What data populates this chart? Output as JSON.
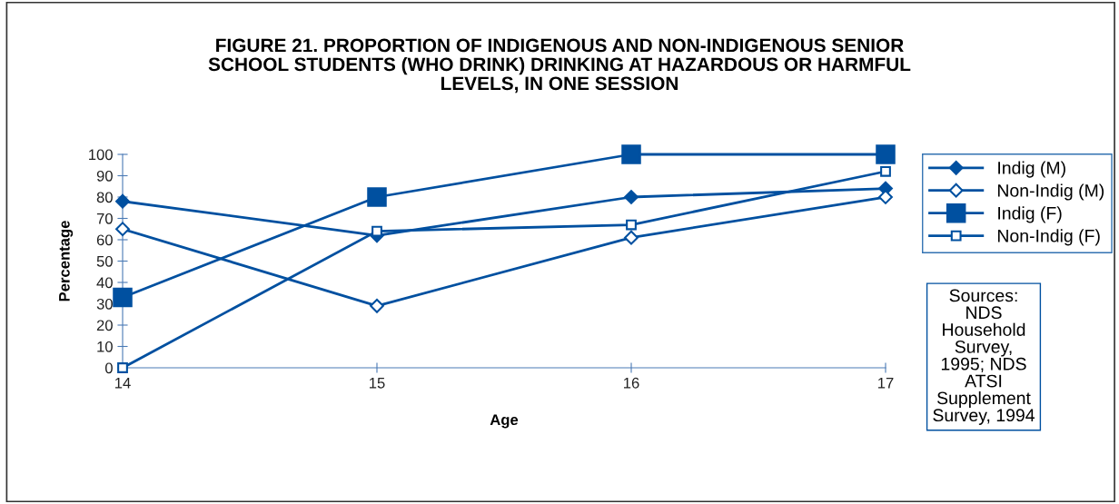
{
  "chart_data": {
    "type": "line",
    "title": "FIGURE 21. PROPORTION OF INDIGENOUS AND NON-INDIGENOUS SENIOR\nSCHOOL STUDENTS (WHO DRINK) DRINKING AT HAZARDOUS OR HARMFUL\nLEVELS, IN ONE SESSION",
    "xlabel": "Age",
    "ylabel": "Percentage",
    "x": [
      14,
      15,
      16,
      17
    ],
    "xlim": [
      14,
      17
    ],
    "xticks": [
      14,
      15,
      16,
      17
    ],
    "ylim": [
      0,
      100
    ],
    "yticks": [
      0,
      10,
      20,
      30,
      40,
      50,
      60,
      70,
      80,
      90,
      100
    ],
    "grid": false,
    "legend": "right",
    "series": [
      {
        "name": "Indig (M)",
        "color": "#0050a0",
        "marker": "diamond",
        "values": [
          78,
          62,
          80,
          84
        ]
      },
      {
        "name": "Non-Indig (M)",
        "color": "#0050a0",
        "marker": "diamond",
        "values": [
          65,
          29,
          61,
          80
        ]
      },
      {
        "name": "Indig (F)",
        "color": "#0050a0",
        "marker": "square",
        "values": [
          33,
          80,
          100,
          100
        ]
      },
      {
        "name": "Non-Indig (F)",
        "color": "#0050a0",
        "marker": "square",
        "values": [
          0,
          64,
          67,
          92
        ]
      }
    ],
    "annotations": [
      "Sources:\nNDS\nHousehold\nSurvey,\n1995; NDS\nATSI\nSupplement\nSurvey, 1994"
    ]
  }
}
